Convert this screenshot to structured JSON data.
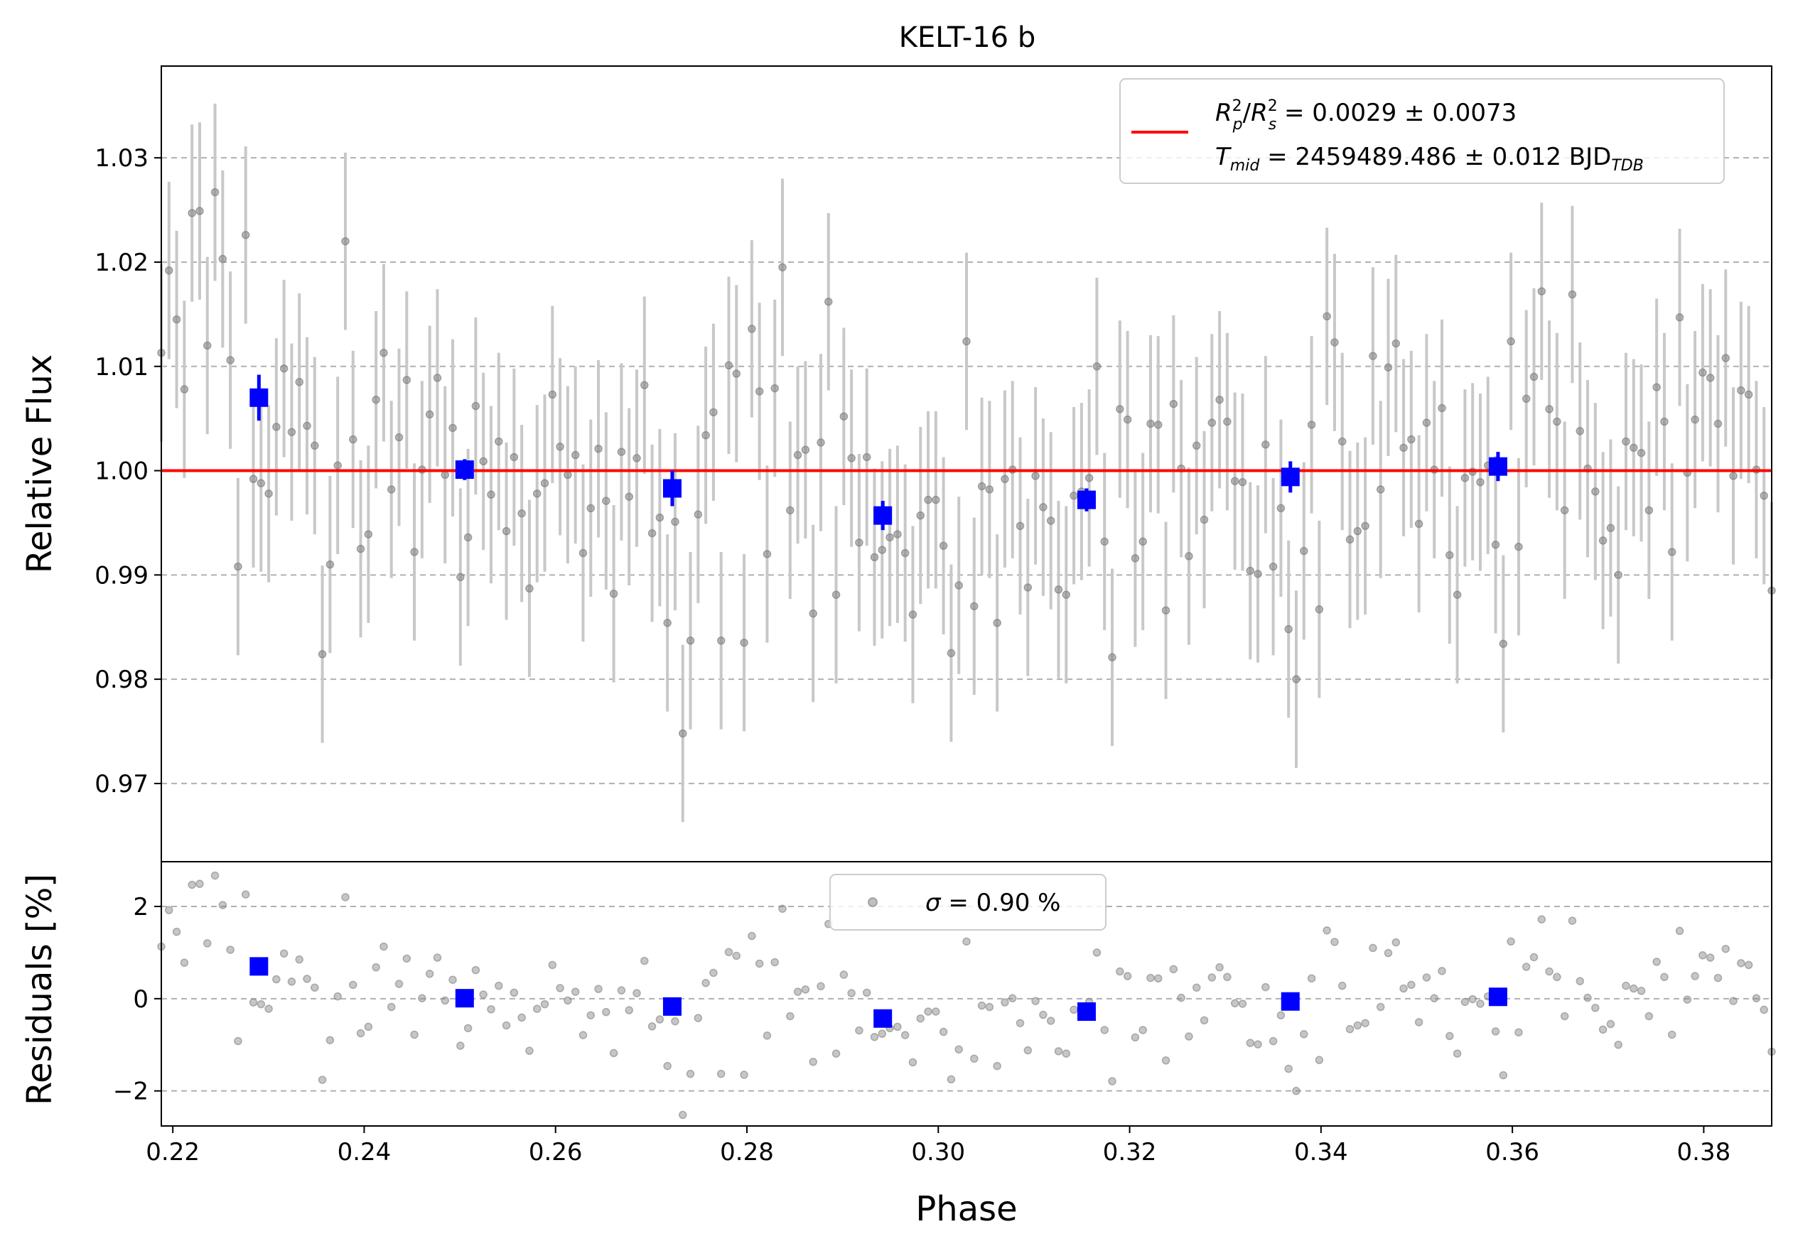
{
  "chart_data": {
    "title": "KELT-16 b",
    "type": "scatter",
    "xlabel": "Phase",
    "xlim": [
      0.2188,
      0.3871
    ],
    "xticks": [
      "0.22",
      "0.24",
      "0.26",
      "0.28",
      "0.30",
      "0.32",
      "0.34",
      "0.36",
      "0.38"
    ],
    "grid": true,
    "colors": {
      "data": "#808080",
      "errorbar": "#c8c8c8",
      "binned": "#0000ff",
      "model": "#ff0000"
    },
    "top_panel": {
      "ylabel": "Relative Flux",
      "ylim": [
        0.9625,
        1.0388
      ],
      "yticks": [
        "0.97",
        "0.98",
        "0.99",
        "1.00",
        "1.01",
        "1.02",
        "1.03"
      ],
      "legend_position": "top-right",
      "model": {
        "y": 1.0
      },
      "legend": {
        "line1": {
          "r": "R",
          "p": "p",
          "s": "s",
          "exp": "2",
          "rest": " = 0.0029 ± 0.0073"
        },
        "line2": {
          "t": "T",
          "mid": "mid",
          "rest": " = 2459489.486 ± 0.012 BJD",
          "tdb": "TDB"
        }
      },
      "binned": [
        {
          "x": 0.229,
          "y": 1.007,
          "err": 0.0022
        },
        {
          "x": 0.2505,
          "y": 1.0001,
          "err": 0.001
        },
        {
          "x": 0.2722,
          "y": 0.9983,
          "err": 0.0017
        },
        {
          "x": 0.2942,
          "y": 0.9957,
          "err": 0.0014
        },
        {
          "x": 0.3155,
          "y": 0.9972,
          "err": 0.0011
        },
        {
          "x": 0.3368,
          "y": 0.9994,
          "err": 0.0015
        },
        {
          "x": 0.3585,
          "y": 1.0004,
          "err": 0.0014
        }
      ],
      "error_spread": 0.0085,
      "points_y": [
        1.0113,
        1.0192,
        1.0145,
        1.0078,
        1.0247,
        1.0249,
        1.012,
        1.0267,
        1.0203,
        1.0106,
        0.9908,
        1.0226,
        0.9992,
        0.9988,
        0.9978,
        1.0042,
        1.0098,
        1.0037,
        1.0085,
        1.0043,
        1.0024,
        0.9824,
        0.991,
        1.0005,
        1.022,
        1.003,
        0.9925,
        0.9939,
        1.0068,
        1.0113,
        0.9982,
        1.0032,
        1.0087,
        0.9922,
        1.0001,
        1.0054,
        1.0089,
        0.9996,
        1.0041,
        0.9898,
        0.9936,
        1.0062,
        1.0009,
        0.9977,
        1.0028,
        0.9942,
        1.0013,
        0.9959,
        0.9887,
        0.9978,
        0.9988,
        1.0073,
        1.0023,
        0.9996,
        1.0015,
        0.9921,
        0.9964,
        1.0021,
        0.9971,
        0.9882,
        1.0018,
        0.9975,
        1.0012,
        1.0082,
        0.994,
        0.9955,
        0.9854,
        0.9951,
        0.9748,
        0.9837,
        0.9958,
        1.0034,
        1.0056,
        0.9837,
        1.0101,
        1.0093,
        0.9835,
        1.0136,
        1.0076,
        0.992,
        1.0079,
        1.0195,
        0.9962,
        1.0015,
        1.002,
        0.9863,
        1.0027,
        1.0162,
        0.9881,
        1.0052,
        1.0012,
        0.9931,
        1.0013,
        0.9917,
        0.9924,
        0.9936,
        0.9939,
        0.9921,
        0.9862,
        0.9957,
        0.9972,
        0.9972,
        0.9928,
        0.9825,
        0.989,
        1.0124,
        0.987,
        0.9985,
        0.9982,
        0.9854,
        0.9992,
        1.0001,
        0.9947,
        0.9888,
        0.9995,
        0.9965,
        0.9952,
        0.9886,
        0.9881,
        0.9976,
        0.998,
        0.9993,
        1.01,
        0.9932,
        0.9821,
        1.0059,
        1.0049,
        0.9916,
        0.9932,
        1.0045,
        1.0044,
        0.9866,
        1.0064,
        1.0002,
        0.9918,
        1.0024,
        0.9953,
        1.0046,
        1.0068,
        1.0047,
        0.999,
        0.9989,
        0.9904,
        0.9901,
        1.0025,
        0.9908,
        0.9964,
        0.9848,
        0.98,
        0.9923,
        1.0044,
        0.9867,
        1.0148,
        1.0123,
        1.0028,
        0.9934,
        0.9942,
        0.9947,
        1.011,
        0.9982,
        1.0099,
        1.0122,
        1.0022,
        1.003,
        0.9949,
        1.0046,
        1.0001,
        1.006,
        0.9919,
        0.9881,
        0.9993,
        0.9999,
        0.9989,
        1.0005,
        0.9929,
        0.9834,
        1.0124,
        0.9927,
        1.0069,
        1.009,
        1.0172,
        1.0059,
        1.0047,
        0.9962,
        1.0169,
        1.0038,
        1.0002,
        0.998,
        0.9933,
        0.9945,
        0.99,
        1.0028,
        1.0022,
        1.0017,
        0.9962,
        1.008,
        1.0047,
        0.9922,
        1.0147,
        0.9998,
        1.0049,
        1.0094,
        1.0089,
        1.0045,
        1.0108,
        0.9995,
        1.0077,
        1.0073,
        1.0001,
        0.9976,
        0.9885
      ]
    },
    "bottom_panel": {
      "ylabel": "Residuals [%]",
      "ylim": [
        -2.76,
        2.97
      ],
      "yticks": [
        "−2",
        "0",
        "2"
      ],
      "legend_position": "upper center",
      "legend_text": " = 0.90 %",
      "legend_sigma": "σ",
      "binned": [
        {
          "x": 0.229,
          "y": 0.7
        },
        {
          "x": 0.2505,
          "y": 0.01
        },
        {
          "x": 0.2722,
          "y": -0.17
        },
        {
          "x": 0.2942,
          "y": -0.43
        },
        {
          "x": 0.3155,
          "y": -0.28
        },
        {
          "x": 0.3368,
          "y": -0.06
        },
        {
          "x": 0.3585,
          "y": 0.04
        }
      ]
    }
  }
}
